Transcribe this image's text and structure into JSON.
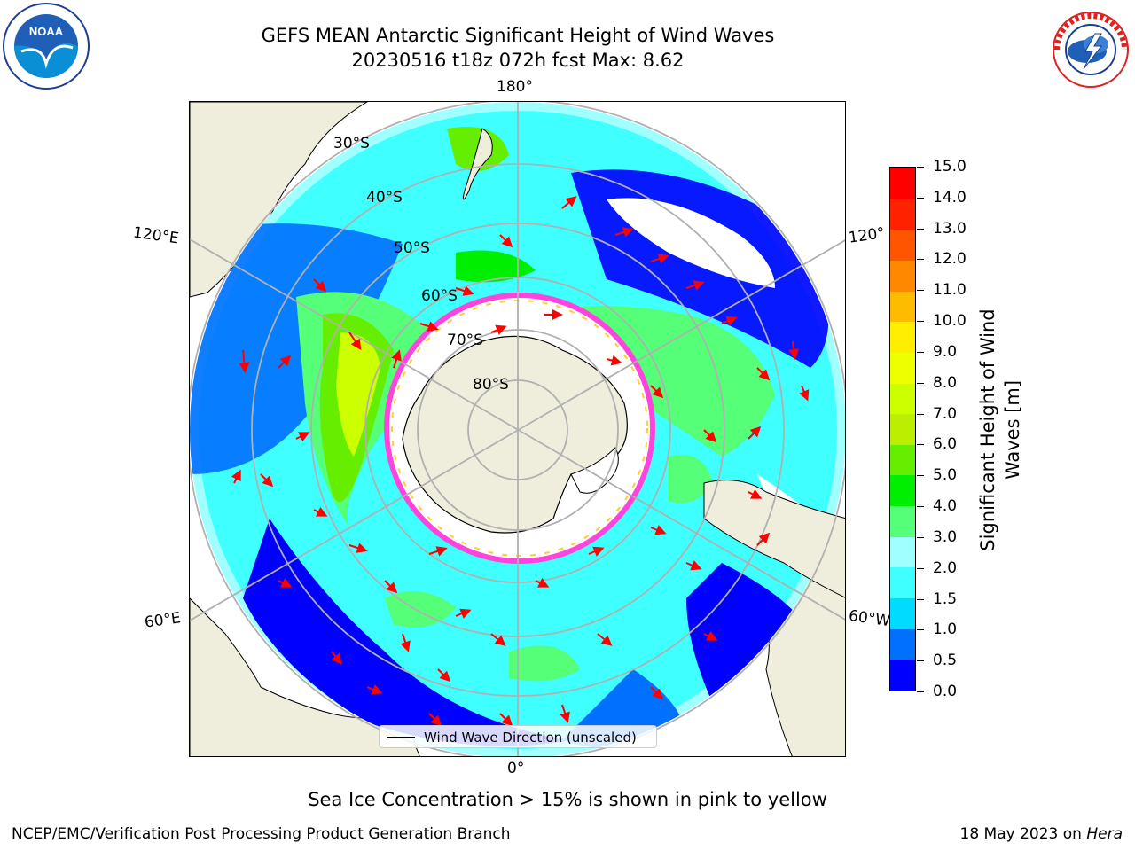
{
  "title": {
    "line1": "GEFS MEAN Antarctic Significant Height of Wind Waves",
    "line2": "20230516 t18z 072h fcst   Max: 8.62"
  },
  "logos": {
    "left_icon": "noaa-logo-icon",
    "left_text": "NOAA",
    "right_icon": "national-weather-service-logo-icon",
    "right_text": "NATIONAL WEATHER SERVICE"
  },
  "map": {
    "longitude_labels": {
      "top": "180°",
      "left_upper": "120°E",
      "left_lower": "60°E",
      "bottom": "0°",
      "right_upper": "120°",
      "right_lower": "60°W"
    },
    "latitude_labels": [
      "30°S",
      "40°S",
      "50°S",
      "60°S",
      "70°S",
      "80°S"
    ],
    "legend": "Wind Wave Direction (unscaled)",
    "colors": {
      "land": "#efeedc",
      "grid": "#b0b0b0",
      "arrow": "#ff0000",
      "ice_edge": "#ff44dd"
    }
  },
  "colorbar": {
    "label": "Significant Height of Wind Waves [m]",
    "label_line1": "Significant Height of Wind",
    "label_line2": "Waves [m]",
    "ticks": [
      "0.0",
      "0.5",
      "1.0",
      "1.5",
      "2.0",
      "3.0",
      "4.0",
      "5.0",
      "6.0",
      "7.0",
      "8.0",
      "9.0",
      "10.0",
      "11.0",
      "12.0",
      "13.0",
      "14.0",
      "15.0"
    ],
    "colors": [
      "#0000ff",
      "#0070ff",
      "#00dcff",
      "#40ffff",
      "#a0ffff",
      "#55ff77",
      "#00ee00",
      "#66ee00",
      "#bbee00",
      "#ccff00",
      "#eeff00",
      "#ffee00",
      "#ffbb00",
      "#ff8800",
      "#ff5500",
      "#ff2200",
      "#ff0000"
    ]
  },
  "note": "Sea Ice Concentration > 15% is shown in pink to yellow",
  "footer": {
    "left": "NCEP/EMC/Verification Post Processing Product Generation Branch",
    "right_date": "18 May 2023 on ",
    "right_host": "Hera"
  }
}
